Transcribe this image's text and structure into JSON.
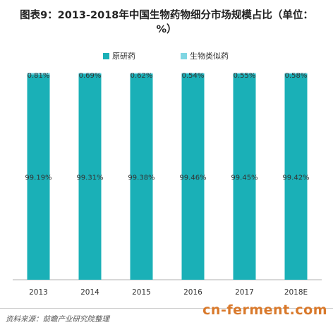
{
  "chart_data": {
    "type": "bar",
    "stacked": true,
    "title": "图表9：2013-2018年中国生物药物细分市场规模占比（单位：%）",
    "categories": [
      "2013",
      "2014",
      "2015",
      "2016",
      "2017",
      "2018E"
    ],
    "series": [
      {
        "name": "原研药",
        "values": [
          99.19,
          99.31,
          99.38,
          99.46,
          99.45,
          99.42
        ],
        "labels": [
          "99.19%",
          "99.31%",
          "99.38%",
          "99.46%",
          "99.45%",
          "99.42%"
        ],
        "color": "#1ab0b7"
      },
      {
        "name": "生物类似药",
        "values": [
          0.81,
          0.69,
          0.62,
          0.54,
          0.55,
          0.58
        ],
        "labels": [
          "0.81%",
          "0.69%",
          "0.62%",
          "0.54%",
          "0.55%",
          "0.58%"
        ],
        "color": "#7fd6e3"
      }
    ],
    "ylim": [
      0,
      100
    ],
    "legend_position": "top",
    "grid": false
  },
  "footer": {
    "source": "资料来源：前瞻产业研究院整理",
    "site_mark": "cn-ferment.com",
    "site_mark_color": "#d9792b"
  }
}
